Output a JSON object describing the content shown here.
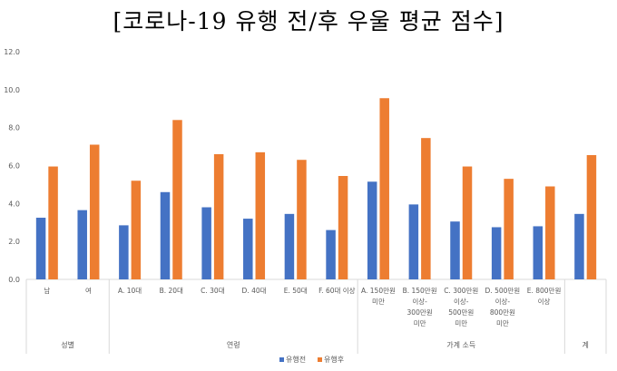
{
  "chart_data": {
    "type": "bar",
    "title": "[코로나-19 유행 전/후 우울 평균 점수]",
    "ylim": [
      0,
      12
    ],
    "yticks": [
      "0.0",
      "2.0",
      "4.0",
      "6.0",
      "8.0",
      "10.0",
      "12.0"
    ],
    "grid": false,
    "legend_position": "bottom",
    "categories": [
      [
        "남"
      ],
      [
        "여"
      ],
      [
        "A. 10대"
      ],
      [
        "B. 20대"
      ],
      [
        "C. 30대"
      ],
      [
        "D. 40대"
      ],
      [
        "E. 50대"
      ],
      [
        "F. 60대 이상"
      ],
      [
        "A. 150만원",
        "미만"
      ],
      [
        "B. 150만원",
        "이상-",
        "300만원",
        "미만"
      ],
      [
        "C. 300만원",
        "이상-",
        "500만원",
        "미만"
      ],
      [
        "D. 500만원",
        "이상-",
        "800만원",
        "미만"
      ],
      [
        "E. 800만원",
        "이상"
      ],
      [
        ""
      ]
    ],
    "groups": [
      {
        "label": "성별",
        "start": 0,
        "end": 1
      },
      {
        "label": "연령",
        "start": 2,
        "end": 7
      },
      {
        "label": "가계 소득",
        "start": 8,
        "end": 12
      },
      {
        "label": "계",
        "start": 13,
        "end": 13
      }
    ],
    "series": [
      {
        "name": "유행전",
        "color": "#4472C4",
        "values": [
          3.25,
          3.65,
          2.85,
          4.6,
          3.8,
          3.2,
          3.45,
          2.6,
          5.15,
          3.95,
          3.05,
          2.75,
          2.8,
          3.45
        ]
      },
      {
        "name": "유행후",
        "color": "#ED7D31",
        "values": [
          5.95,
          7.1,
          5.2,
          8.4,
          6.6,
          6.7,
          6.3,
          5.45,
          9.55,
          7.45,
          5.95,
          5.3,
          4.9,
          6.55
        ]
      }
    ]
  }
}
